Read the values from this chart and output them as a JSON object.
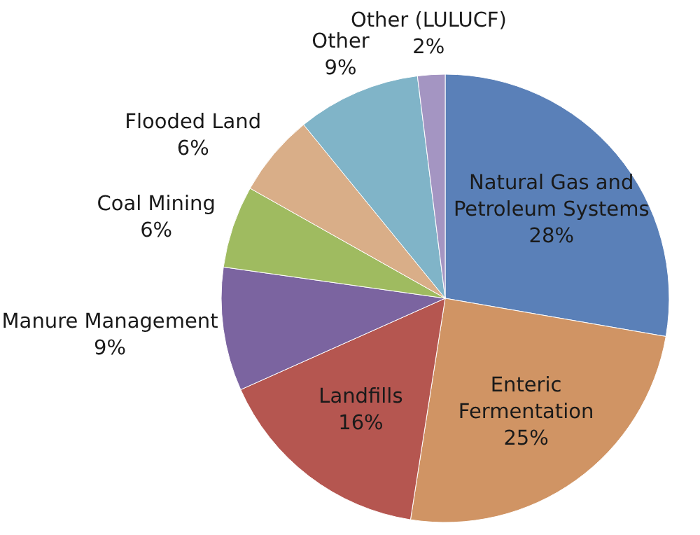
{
  "chart_data": {
    "type": "pie",
    "categories": [
      "Natural Gas and Petroleum Systems",
      "Enteric Fermentation",
      "Landfills",
      "Manure Management",
      "Coal Mining",
      "Flooded Land",
      "Other",
      "Other (LULUCF)"
    ],
    "values": [
      28,
      25,
      16,
      9,
      6,
      6,
      9,
      2
    ],
    "colors": [
      "#5a80b8",
      "#d09464",
      "#b55650",
      "#7b64a0",
      "#9fbb60",
      "#d9ae88",
      "#80b4c8",
      "#a495c2"
    ],
    "value_labels": [
      "28%",
      "25%",
      "16%",
      "9%",
      "6%",
      "6%",
      "9%",
      "2%"
    ]
  }
}
